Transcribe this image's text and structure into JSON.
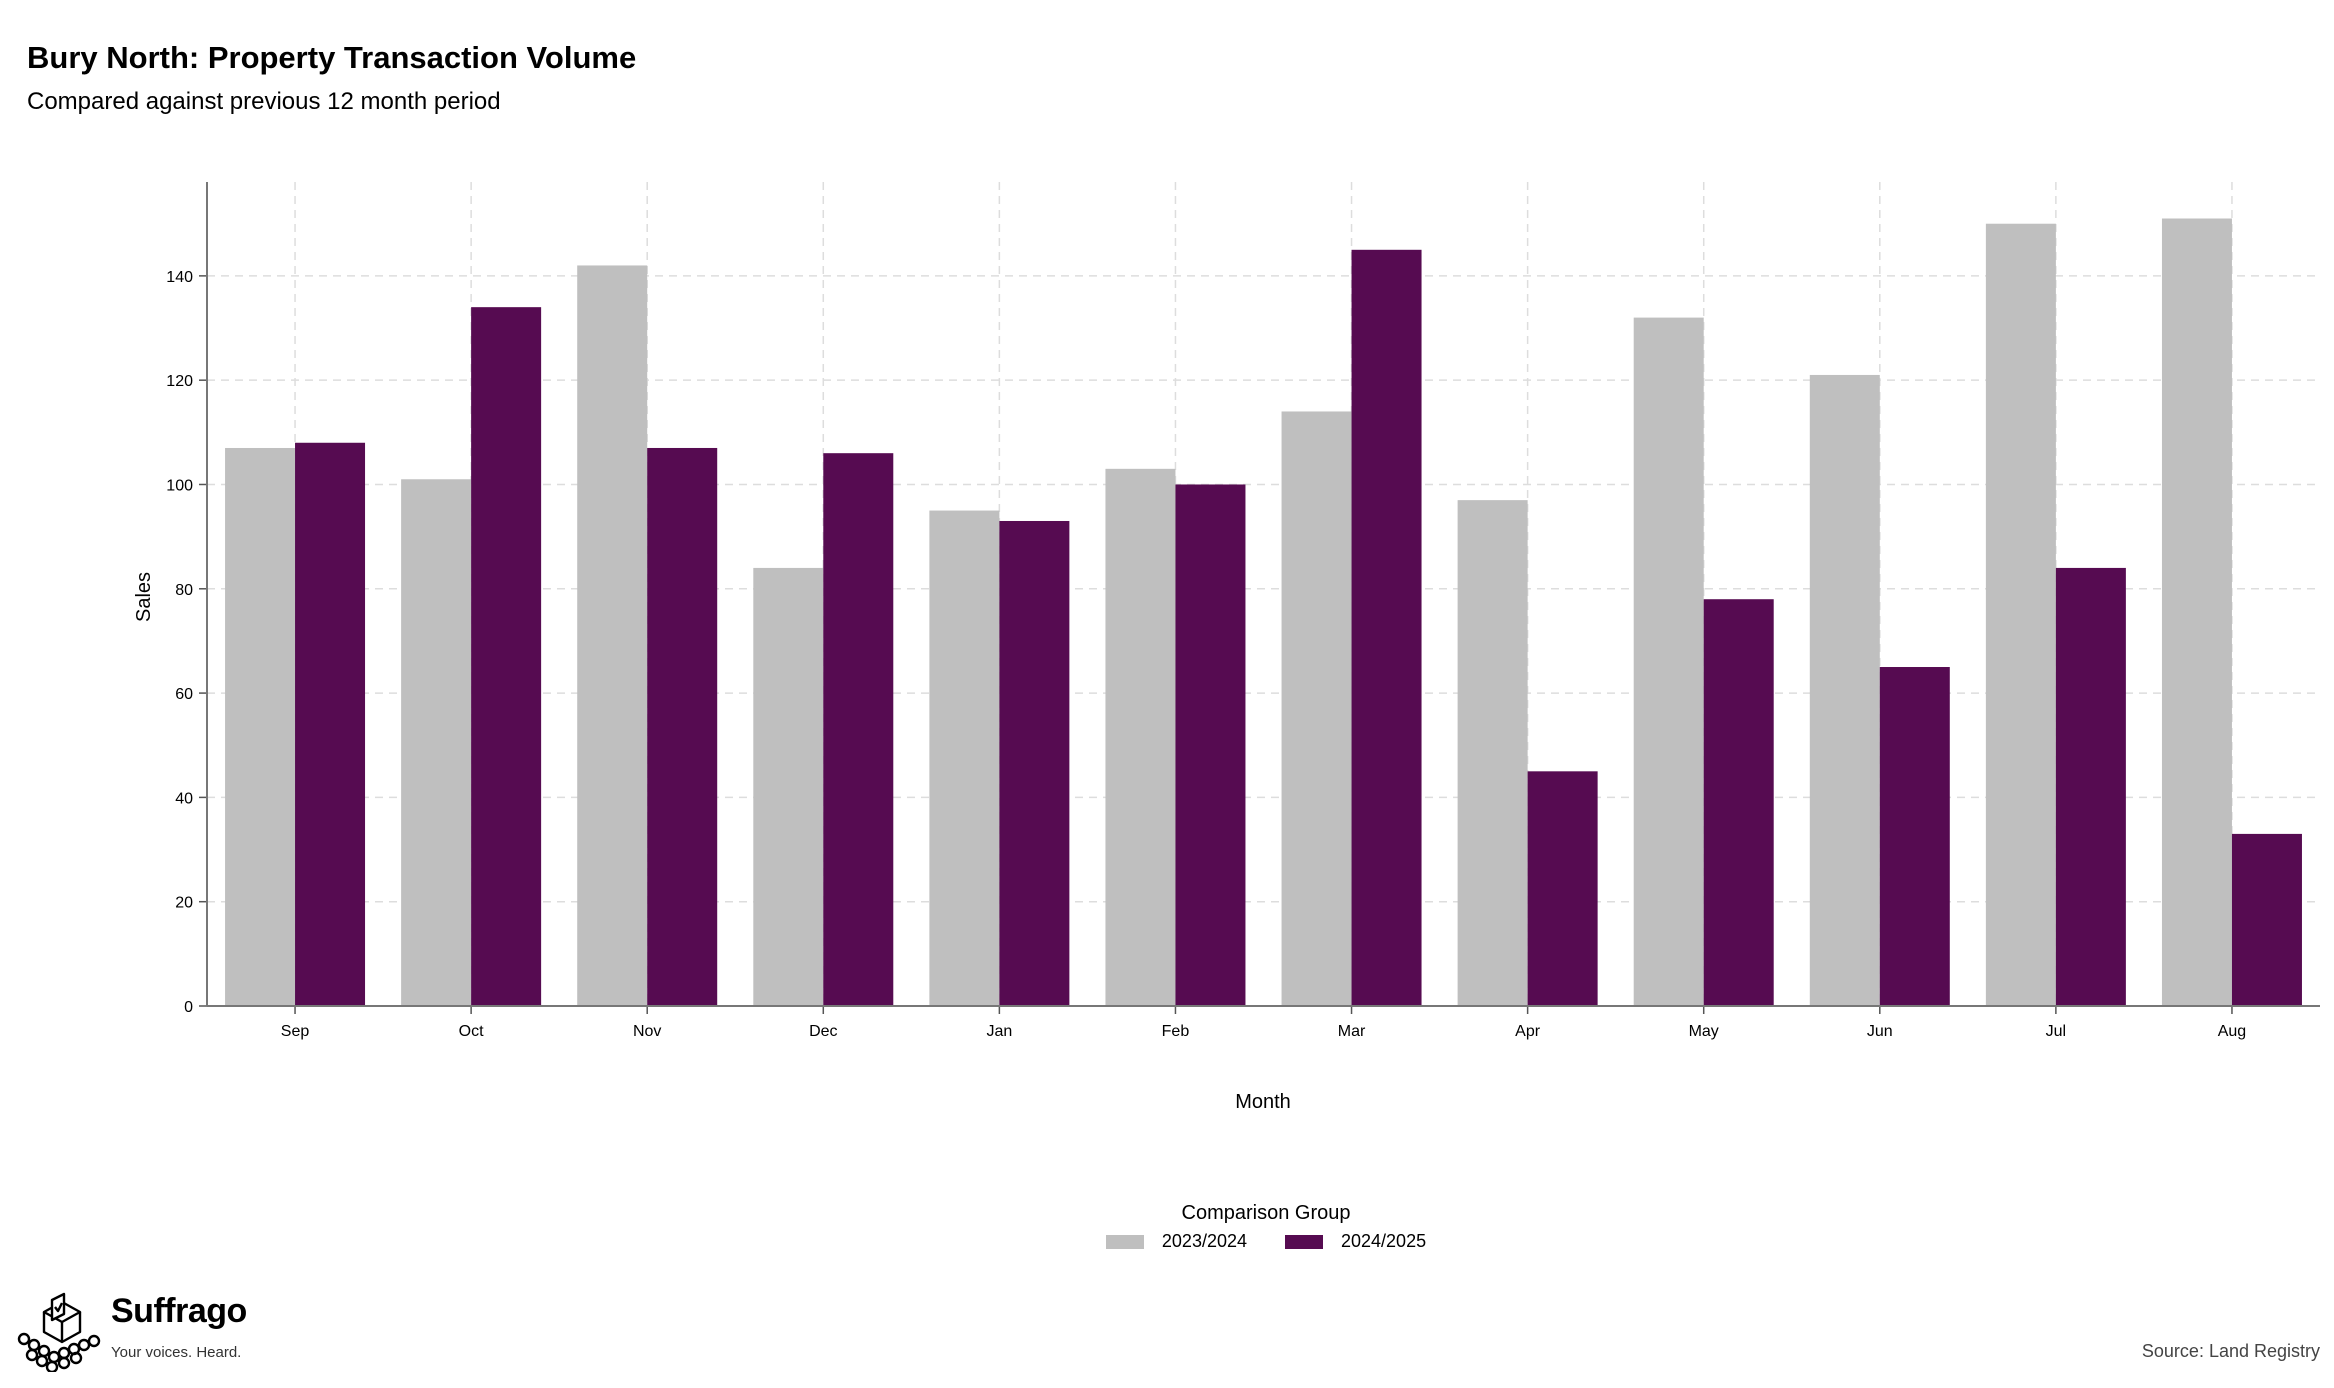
{
  "chart_data": {
    "type": "bar",
    "title": "Bury North: Property Transaction Volume",
    "subtitle": "Compared against previous 12 month period",
    "xlabel": "Month",
    "ylabel": "Sales",
    "categories": [
      "Sep",
      "Oct",
      "Nov",
      "Dec",
      "Jan",
      "Feb",
      "Mar",
      "Apr",
      "May",
      "Jun",
      "Jul",
      "Aug"
    ],
    "series": [
      {
        "name": "2023/2024",
        "color": "#bfbfbf",
        "values": [
          107,
          101,
          142,
          84,
          95,
          103,
          114,
          97,
          132,
          121,
          150,
          151
        ]
      },
      {
        "name": "2024/2025",
        "color": "#560b51",
        "values": [
          108,
          134,
          107,
          106,
          93,
          100,
          145,
          45,
          78,
          65,
          84,
          33
        ]
      }
    ],
    "ylim": [
      0,
      158
    ],
    "yticks": [
      0,
      20,
      40,
      60,
      80,
      100,
      120,
      140
    ],
    "grid": true,
    "legend": {
      "title": "Comparison Group",
      "position": "bottom"
    },
    "source": "Source: Land Registry"
  },
  "branding": {
    "name": "Suffrago",
    "tagline": "Your voices. Heard.",
    "icon": "ballot-box-icon"
  }
}
